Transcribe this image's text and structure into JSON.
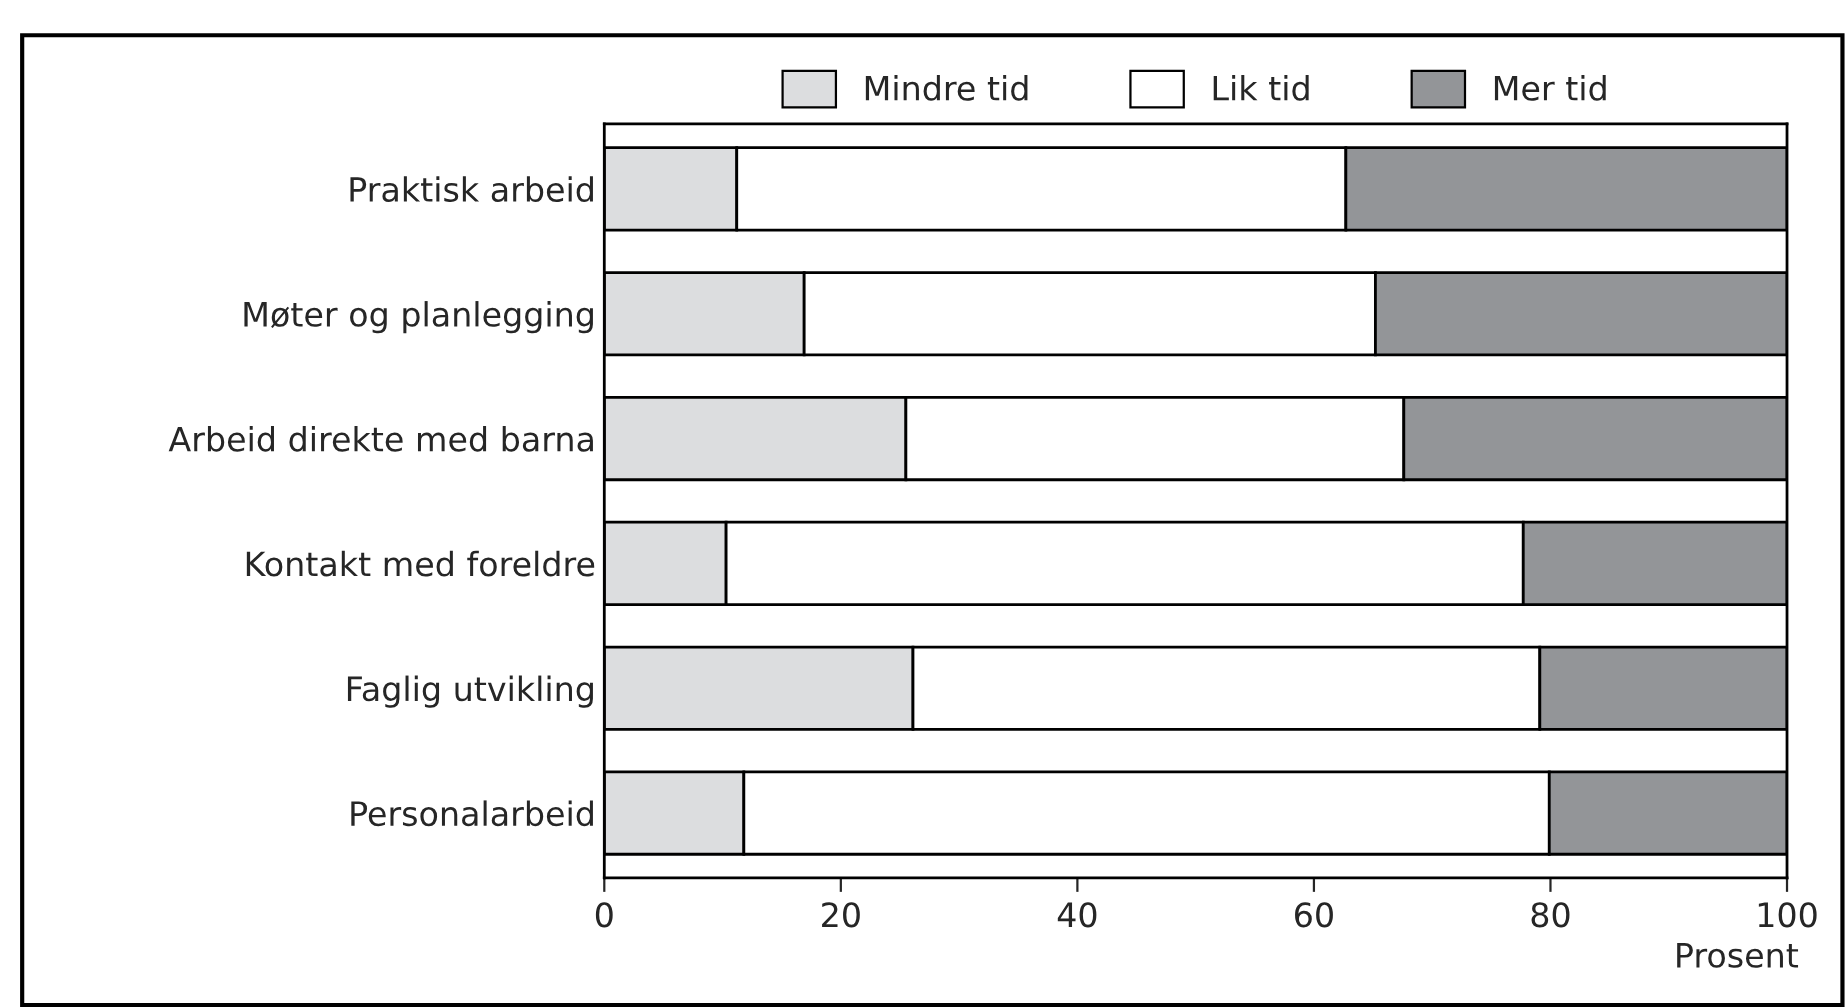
{
  "chart_data": {
    "type": "bar",
    "orientation": "horizontal",
    "stacked": true,
    "categories": [
      "Praktisk arbeid",
      "Møter og planlegging",
      "Arbeid direkte med barna",
      "Kontakt med foreldre",
      "Faglig utvikling",
      "Personalarbeid"
    ],
    "series": [
      {
        "name": "Mindre tid",
        "color": "#dcdddf",
        "values": [
          11.2,
          16.9,
          25.5,
          10.3,
          26.1,
          11.8
        ]
      },
      {
        "name": "Lik tid",
        "color": "#ffffff",
        "values": [
          51.5,
          48.3,
          42.1,
          67.4,
          53.0,
          68.1
        ]
      },
      {
        "name": "Mer tid",
        "color": "#939598",
        "values": [
          37.3,
          34.8,
          32.4,
          22.3,
          20.9,
          20.1
        ]
      }
    ],
    "xlim": [
      0,
      100
    ],
    "xticks": [
      0,
      20,
      40,
      60,
      80,
      100
    ],
    "xlabel": "Prosent",
    "grid": false,
    "legend": "top"
  }
}
